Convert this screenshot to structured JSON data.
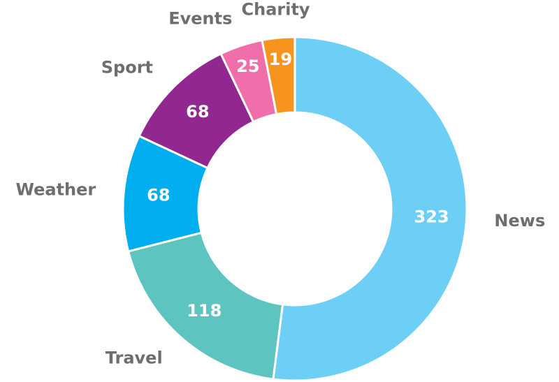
{
  "chart_data": {
    "type": "donut",
    "categories": [
      "News",
      "Travel",
      "Weather",
      "Sport",
      "Events",
      "Charity"
    ],
    "values": [
      323,
      118,
      68,
      68,
      25,
      19
    ],
    "colors": [
      "#6dcff6",
      "#5ec4bf",
      "#00aeef",
      "#92278f",
      "#f06eaa",
      "#f7941d"
    ]
  }
}
